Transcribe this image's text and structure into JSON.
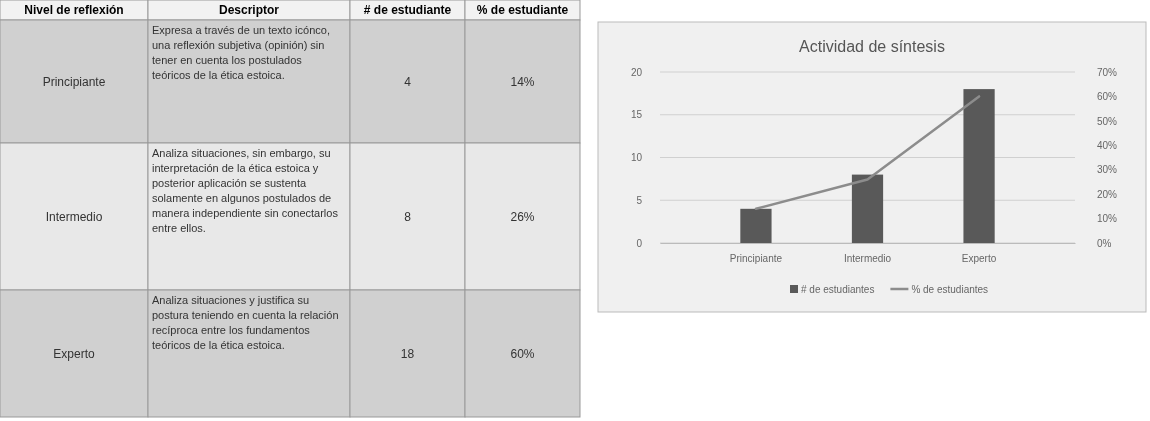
{
  "chart_data": [
    {
      "type": "other",
      "annotations": [
        "Nivel de reflexión",
        "Descriptor",
        "# de estudiante",
        "% de estudiante",
        "Principiante",
        "Expresa a través de un texto icónco, una reflexión subjetiva (opinión) sin tener en cuenta los postulados teóricos de la ética estoica.",
        "4",
        "14%",
        "Intermedio",
        "Analiza situaciones, sin embargo, su interpretación de la ética estoica y posterior aplicación se sustenta solamente en algunos postulados de manera independiente sin conectarlos entre ellos.",
        "8",
        "26%",
        "Experto",
        "Analiza situaciones y justifica su postura teniendo en cuenta la relación recíproca entre los fundamentos teóricos de la ética estoica.",
        "18",
        "60%"
      ]
    },
    {
      "type": "bar",
      "title": "Actividad de síntesis",
      "categories": [
        "Principiante",
        "Intermedio",
        "Experto"
      ],
      "series": [
        {
          "name": "# de estudiantes",
          "color": "#595959",
          "values": [
            4,
            8,
            18
          ]
        },
        {
          "name": "% de estudiantes",
          "type": "line",
          "axis": "y2",
          "color": "#8c8c8c",
          "values": [
            14,
            26,
            60
          ]
        }
      ],
      "ylim": [
        0,
        20
      ],
      "yticks": [
        0,
        5,
        10,
        15,
        20
      ],
      "y2lim": [
        0,
        70
      ],
      "y2ticks": [
        {
          "value": 0,
          "label": "0%"
        },
        {
          "value": 10,
          "label": "10%"
        },
        {
          "value": 20,
          "label": "20%"
        },
        {
          "value": 30,
          "label": "30%"
        },
        {
          "value": 40,
          "label": "40%"
        },
        {
          "value": 50,
          "label": "50%"
        },
        {
          "value": 60,
          "label": "60%"
        },
        {
          "value": 70,
          "label": "70%"
        }
      ],
      "grid": "y",
      "legend": "bottom"
    }
  ]
}
